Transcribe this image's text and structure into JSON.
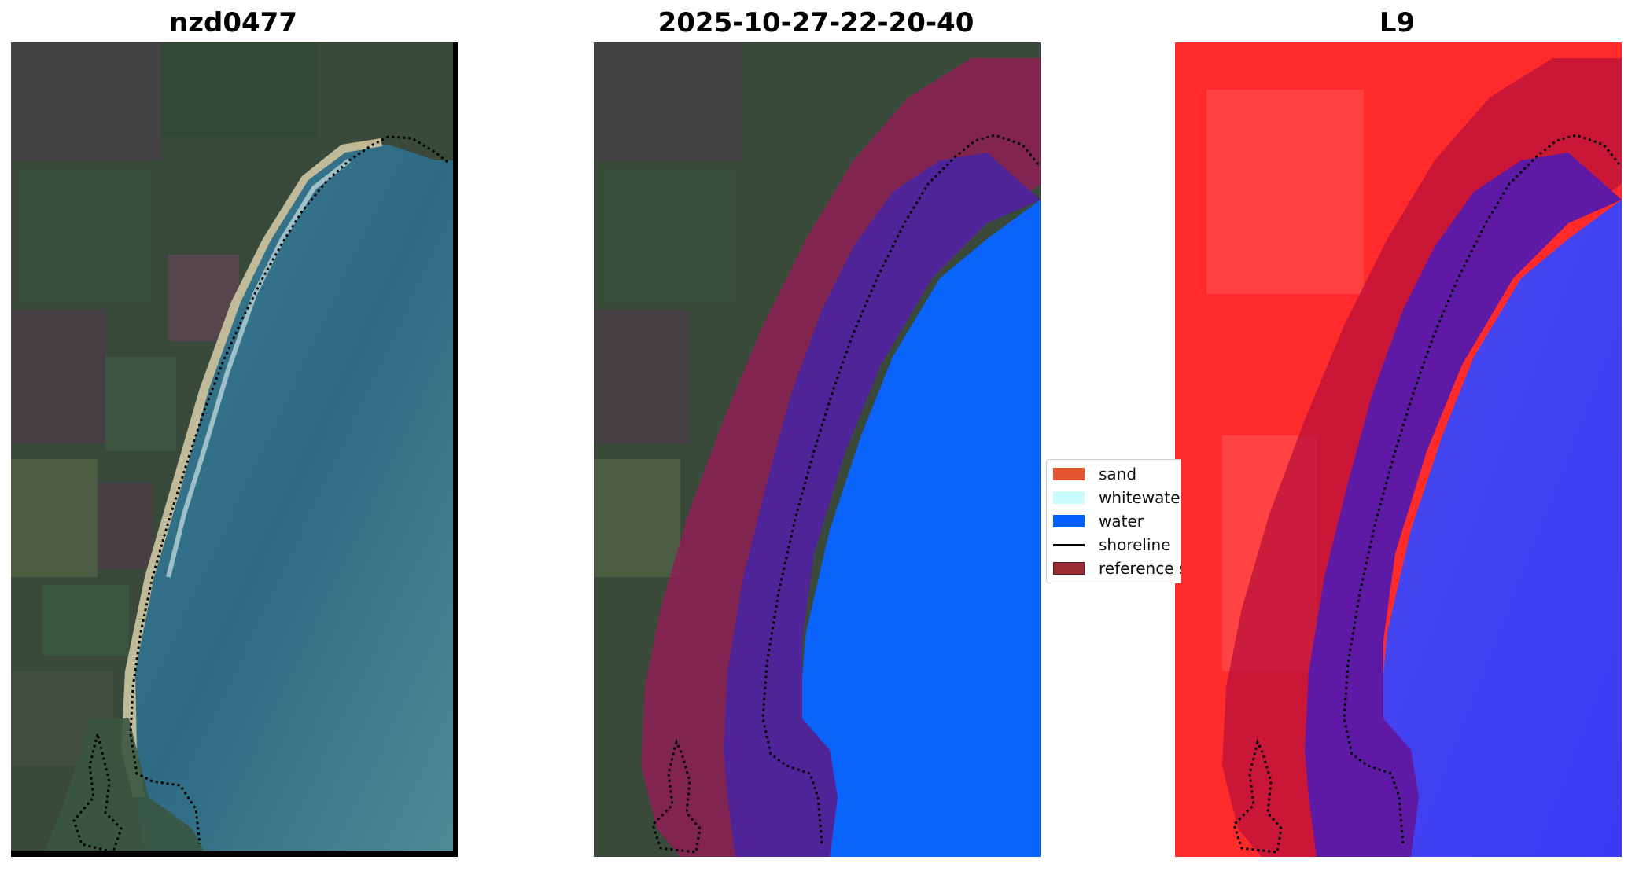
{
  "panels": [
    {
      "title": "nzd0477",
      "kind": "rgb-image"
    },
    {
      "title": "2025-10-27-22-20-40",
      "kind": "classified-image"
    },
    {
      "title": "L9",
      "kind": "water-index-image"
    }
  ],
  "legend": {
    "items": [
      {
        "label": "sand",
        "kind": "patch",
        "color": "#e2552f"
      },
      {
        "label": "whitewater",
        "kind": "patch",
        "color": "#ccfdfd"
      },
      {
        "label": "water",
        "kind": "patch",
        "color": "#0061ff"
      },
      {
        "label": "shoreline",
        "kind": "line",
        "color": "#000000"
      },
      {
        "label": "reference shoreline buffer",
        "kind": "patch",
        "color": "#9e2c34"
      }
    ]
  },
  "colors": {
    "land_rgb": "#3a4d3c",
    "ocean_rgb": "#2f6d86",
    "beach_sand": "#cfc29a",
    "buffer_overlay": "#8e1f55",
    "water_class": "#0a63fb",
    "water_in_buffer": "#4f2499",
    "index_land": "#ff2a2a",
    "index_water": "#3c3cf0"
  }
}
